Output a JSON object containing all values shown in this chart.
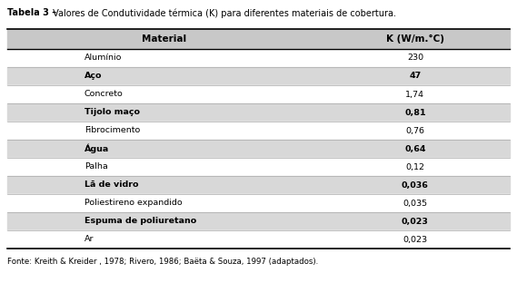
{
  "title_bold": "Tabela 3 –",
  "title_normal": " Valores de Condutividade térmica (K) para diferentes materiais de cobertura.",
  "footer": "Fonte: Kreith & Kreider , 1978; Rivero, 1986; Baëta & Souza, 1997 (adaptados).",
  "col_headers": [
    "Material",
    "K (W/m.°C)"
  ],
  "rows": [
    [
      "Alumínio",
      "230"
    ],
    [
      "Aço",
      "47"
    ],
    [
      "Concreto",
      "1,74"
    ],
    [
      "Tijolo maço",
      "0,81"
    ],
    [
      "Fibrocimento",
      "0,76"
    ],
    [
      "Água",
      "0,64"
    ],
    [
      "Palha",
      "0,12"
    ],
    [
      "Lã de vidro",
      "0,036"
    ],
    [
      "Poliestireno expandido",
      "0,035"
    ],
    [
      "Espuma de poliuretano",
      "0,023"
    ],
    [
      "Ar",
      "0,023"
    ]
  ],
  "shaded_rows": [
    1,
    3,
    5,
    7,
    9
  ],
  "header_bg": "#c8c8c8",
  "shaded_bg": "#d8d8d8",
  "white_bg": "#ffffff",
  "outer_bg": "#ffffff",
  "title_fontsize": 7.0,
  "header_fontsize": 7.5,
  "body_fontsize": 6.8,
  "footer_fontsize": 6.2
}
